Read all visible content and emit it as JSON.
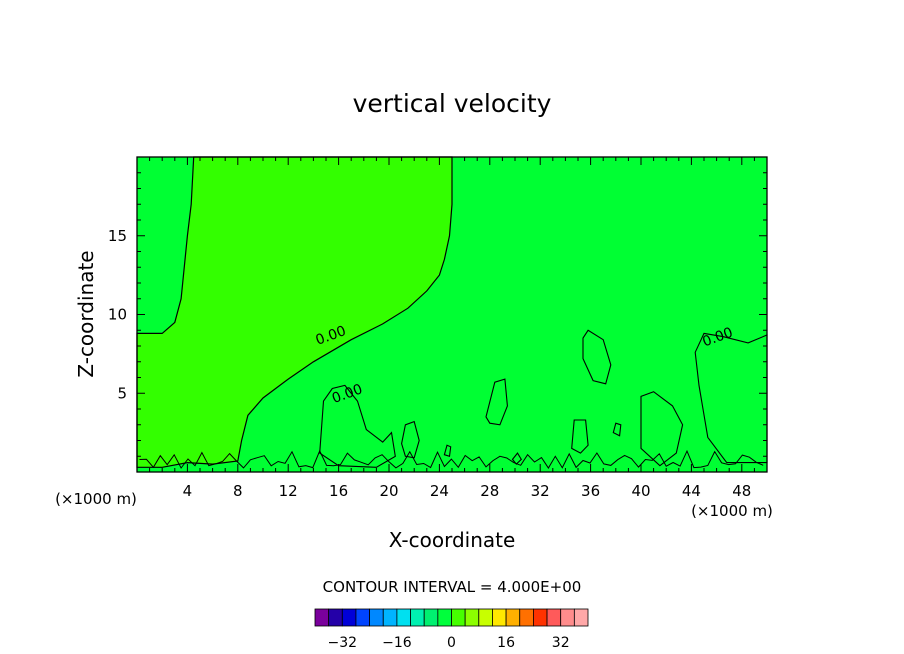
{
  "chart_data": {
    "type": "contour",
    "title": "vertical velocity",
    "xlabel": "X-coordinate",
    "ylabel": "Z-coordinate",
    "x_unit_left": "(×1000 m)",
    "x_unit_right": "(×1000 m)",
    "xlim": [
      0,
      50
    ],
    "ylim": [
      0,
      20
    ],
    "x_ticks": [
      4,
      8,
      12,
      16,
      20,
      24,
      28,
      32,
      36,
      40,
      44,
      48
    ],
    "y_ticks": [
      5,
      10,
      15
    ],
    "contour_labels": [
      {
        "text": "0.00",
        "x": 15.5,
        "y": 8.4
      },
      {
        "text": "0.00",
        "x": 16.8,
        "y": 4.7
      },
      {
        "text": "0.00",
        "x": 46.2,
        "y": 8.3
      }
    ],
    "contour_interval_text": "CONTOUR INTERVAL = 4.000E+00",
    "colorbar": {
      "levels": [
        -36,
        -32,
        -28,
        -24,
        -20,
        -16,
        -12,
        -8,
        -4,
        0,
        4,
        8,
        12,
        16,
        20,
        24,
        28,
        32,
        36
      ],
      "tick_labels": [
        "−32",
        "−16",
        "0",
        "16",
        "32"
      ],
      "tick_values": [
        -32,
        -16,
        0,
        16,
        32
      ],
      "colors": [
        "#7a009c",
        "#2400a8",
        "#0000d8",
        "#0044ff",
        "#0088ff",
        "#00b4ff",
        "#00e0f0",
        "#00f0b0",
        "#00f070",
        "#00ff3c",
        "#46ff00",
        "#8cff00",
        "#c8ff00",
        "#ffe800",
        "#ffb000",
        "#ff7000",
        "#ff3200",
        "#ff5a5a",
        "#ff8c8c",
        "#ffa8a8"
      ]
    },
    "fill_colors": {
      "zero_band": "#00ff33",
      "positive_band": "#33ff00"
    }
  }
}
